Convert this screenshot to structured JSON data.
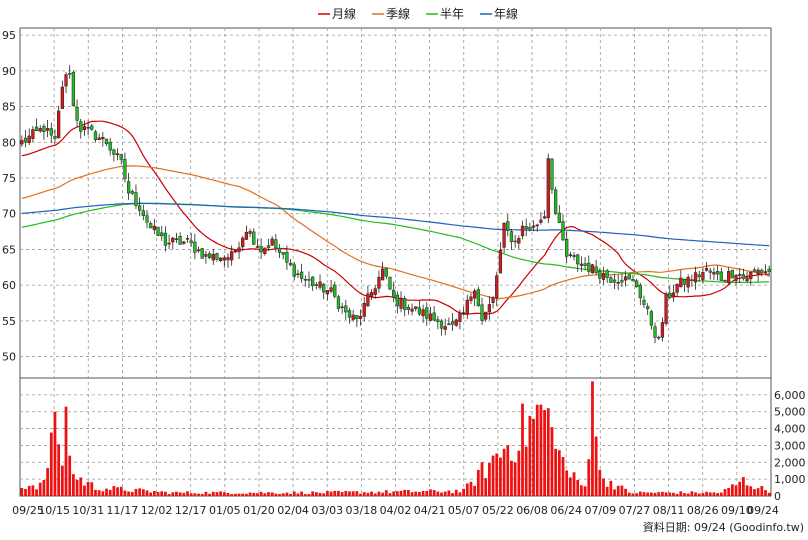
{
  "chart_data": {
    "type": "candlestick_with_volume",
    "legend": [
      {
        "name": "月線",
        "color": "#cc0000"
      },
      {
        "name": "季線",
        "color": "#e07020"
      },
      {
        "name": "半年",
        "color": "#22bb22"
      },
      {
        "name": "年線",
        "color": "#1f5fbf"
      }
    ],
    "price_axis": {
      "ylim": [
        47,
        96
      ],
      "ticks": [
        50,
        55,
        60,
        65,
        70,
        75,
        80,
        85,
        90,
        95
      ]
    },
    "volume_axis": {
      "ylim": [
        0,
        7000
      ],
      "ticks": [
        0,
        1000,
        2000,
        3000,
        4000,
        5000,
        6000
      ],
      "tick_labels": [
        "0",
        "1,000",
        "2,000",
        "3,000",
        "4,000",
        "5,000",
        "6,000"
      ]
    },
    "x_labels": [
      "09/25",
      "10/15",
      "10/31",
      "11/17",
      "12/02",
      "12/17",
      "01/05",
      "01/20",
      "02/04",
      "03/03",
      "03/18",
      "04/02",
      "04/21",
      "05/07",
      "05/22",
      "06/08",
      "06/24",
      "07/09",
      "07/27",
      "08/11",
      "08/26",
      "09/10",
      "09/24"
    ],
    "anchors": [
      [
        0,
        80
      ],
      [
        6,
        82
      ],
      [
        9,
        80
      ],
      [
        11,
        88
      ],
      [
        13,
        90
      ],
      [
        14,
        85
      ],
      [
        16,
        82
      ],
      [
        20,
        81
      ],
      [
        23,
        80
      ],
      [
        27,
        77
      ],
      [
        29,
        73
      ],
      [
        32,
        71
      ],
      [
        35,
        68
      ],
      [
        39,
        66
      ],
      [
        45,
        66
      ],
      [
        50,
        64
      ],
      [
        57,
        64
      ],
      [
        61,
        68
      ],
      [
        65,
        65
      ],
      [
        68,
        66
      ],
      [
        72,
        63
      ],
      [
        76,
        61
      ],
      [
        80,
        60
      ],
      [
        84,
        59
      ],
      [
        88,
        56
      ],
      [
        91,
        55
      ],
      [
        95,
        59
      ],
      [
        98,
        62
      ],
      [
        101,
        58
      ],
      [
        105,
        57
      ],
      [
        109,
        56
      ],
      [
        113,
        55
      ],
      [
        117,
        54
      ],
      [
        120,
        56
      ],
      [
        123,
        60
      ],
      [
        125,
        55
      ],
      [
        128,
        58
      ],
      [
        131,
        68
      ],
      [
        134,
        66
      ],
      [
        136,
        68
      ],
      [
        139,
        68
      ],
      [
        142,
        70
      ],
      [
        143,
        78
      ],
      [
        145,
        70
      ],
      [
        148,
        64
      ],
      [
        152,
        63
      ],
      [
        156,
        62
      ],
      [
        160,
        61
      ],
      [
        163,
        61
      ],
      [
        167,
        60
      ],
      [
        170,
        56
      ],
      [
        173,
        52
      ],
      [
        175,
        58
      ],
      [
        178,
        60
      ],
      [
        182,
        61
      ],
      [
        186,
        62
      ],
      [
        190,
        61
      ],
      [
        194,
        62
      ],
      [
        196,
        61
      ],
      [
        200,
        62
      ],
      [
        203,
        62
      ]
    ],
    "volume_anchors": [
      [
        0,
        600
      ],
      [
        6,
        700
      ],
      [
        9,
        5000
      ],
      [
        11,
        1800
      ],
      [
        12,
        5300
      ],
      [
        14,
        1200
      ],
      [
        20,
        500
      ],
      [
        40,
        200
      ],
      [
        80,
        200
      ],
      [
        120,
        300
      ],
      [
        131,
        2800
      ],
      [
        142,
        5100
      ],
      [
        145,
        2800
      ],
      [
        149,
        1200
      ],
      [
        153,
        500
      ],
      [
        155,
        6800
      ],
      [
        157,
        1200
      ],
      [
        165,
        200
      ],
      [
        190,
        200
      ],
      [
        196,
        900
      ],
      [
        203,
        250
      ]
    ],
    "footer": "資料日期: 09/24  (Goodinfo.tw)"
  }
}
